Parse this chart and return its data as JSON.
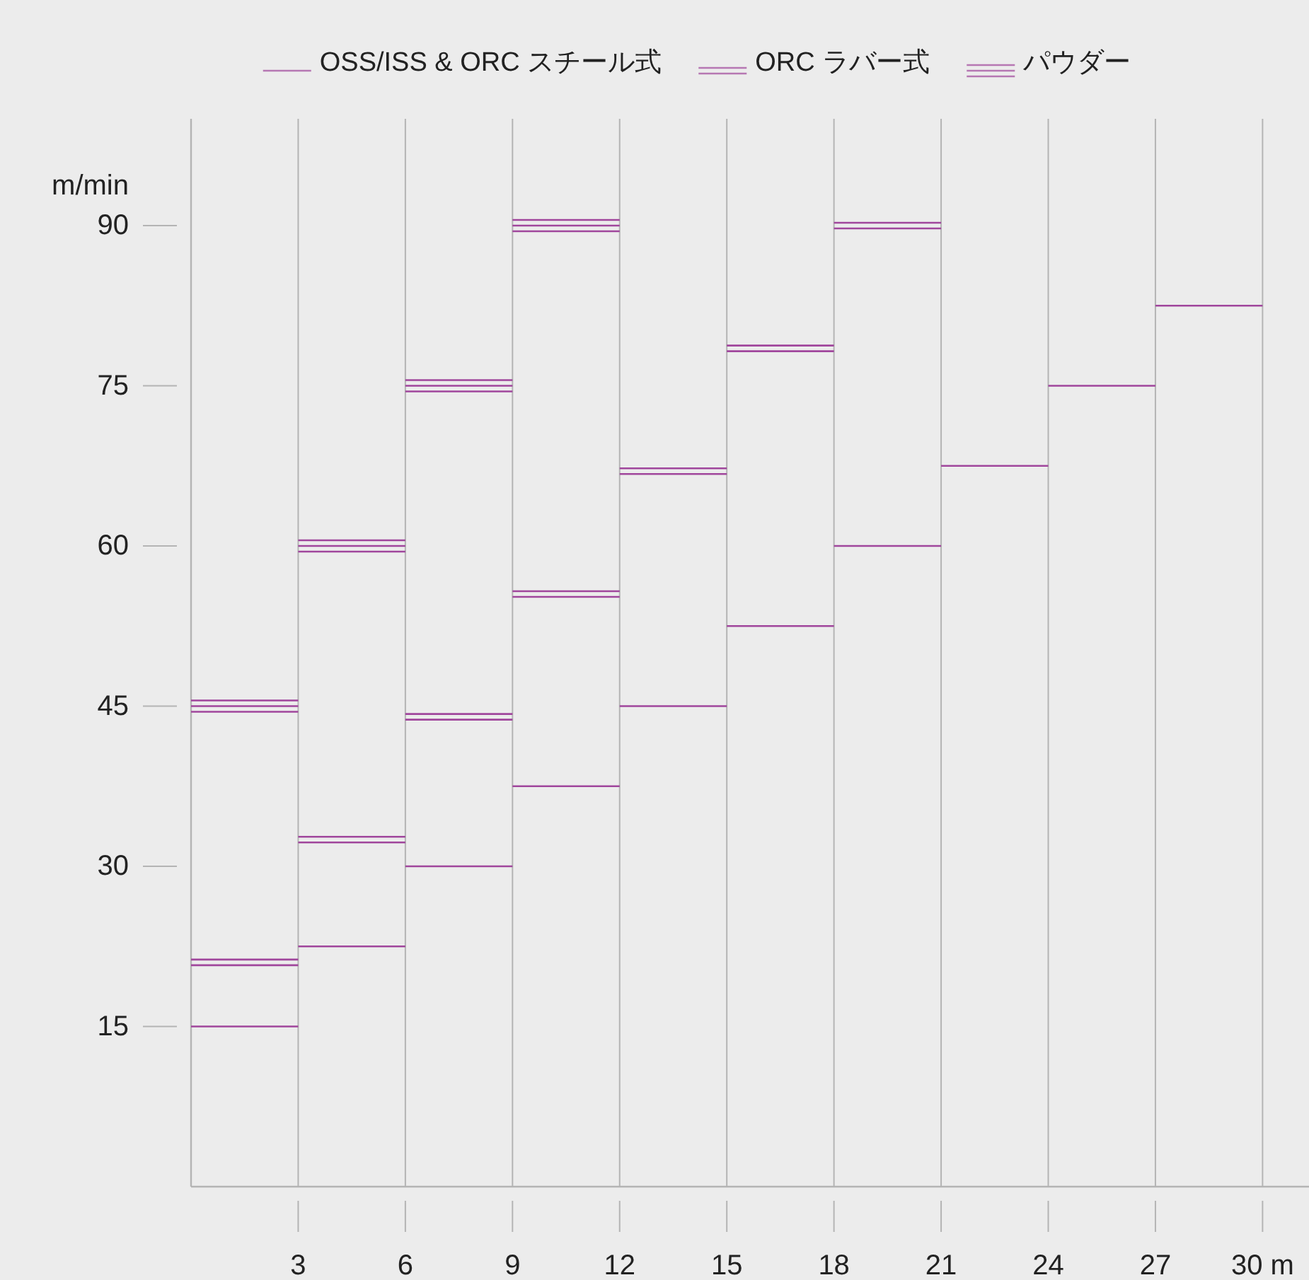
{
  "chart_data": {
    "type": "step",
    "ylabel": "m/min",
    "xlim": [
      0,
      31.3
    ],
    "xticks": [
      3,
      6,
      9,
      12,
      15,
      18,
      21,
      24,
      27,
      {
        "value": 30,
        "label": "30 m"
      }
    ],
    "ylim": [
      0,
      100
    ],
    "yticks": [
      15,
      30,
      45,
      60,
      75,
      90
    ],
    "grid": "x",
    "legend": "top",
    "series": [
      {
        "name": "OSS/ISS & ORC スチール式",
        "color": "#a0469c",
        "x": [
          0,
          3,
          6,
          9,
          12,
          15,
          18,
          21,
          24,
          27,
          30
        ],
        "values": [
          15,
          22.5,
          30,
          37.5,
          45,
          52.5,
          60,
          67.5,
          75,
          82.5,
          82.5
        ]
      },
      {
        "name": "ORC ラバー式",
        "color": "#a0469c",
        "x": [
          0,
          3,
          6,
          9,
          12,
          15,
          18,
          21
        ],
        "values": [
          21,
          32.5,
          44,
          55.5,
          67,
          78.5,
          90,
          90
        ]
      },
      {
        "name": "パウダー",
        "color": "#a0469c",
        "x": [
          0,
          3,
          6,
          9,
          12
        ],
        "values": [
          45,
          60,
          75,
          90,
          90
        ]
      }
    ]
  }
}
